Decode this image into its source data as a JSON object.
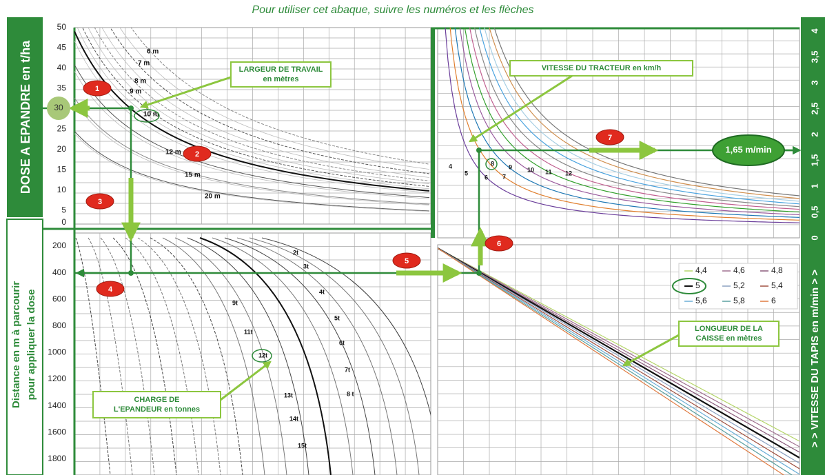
{
  "title": "Pour utiliser cet abaque, suivre les numéros et les flèches",
  "dose_axis": {
    "title": "DOSE A EPANDRE en t/ha",
    "ticks": [
      "50",
      "45",
      "40",
      "35",
      "30",
      "25",
      "20",
      "15",
      "10",
      "5",
      "0"
    ]
  },
  "distance_axis": {
    "title_lines": [
      "Distance en m à parcourir",
      "pour appliquer la dose"
    ],
    "ticks": [
      "200",
      "400",
      "600",
      "800",
      "1000",
      "1200",
      "1400",
      "1600",
      "1800"
    ]
  },
  "speed_axis": {
    "title": "> > VITESSE DU TAPIS en m/min > >",
    "ticks": [
      "0",
      "0,5",
      "1",
      "1,5",
      "2",
      "2,5",
      "3",
      "3,5",
      "4"
    ]
  },
  "width_panel": {
    "label_lines": [
      "LARGEUR DE TRAVAIL",
      "en mètres"
    ],
    "curve_labels": [
      "6 m",
      "7 m",
      "8 m",
      "9 m",
      "10 m",
      "12 m",
      "15 m",
      "20 m"
    ]
  },
  "load_panel": {
    "label_lines": [
      "CHARGE DE",
      "L'EPANDEUR en tonnes"
    ],
    "curve_labels": [
      "2t",
      "3t",
      "4t",
      "5t",
      "6t",
      "7t",
      "8 t",
      "9t",
      "11t",
      "12t",
      "13t",
      "14t",
      "15t"
    ]
  },
  "tractor_panel": {
    "label": "VITESSE DU TRACTEUR en km/h",
    "curve_labels": [
      "4",
      "5",
      "6",
      "7",
      "8",
      "9",
      "10",
      "11",
      "12"
    ]
  },
  "box_panel": {
    "label_lines": [
      "LONGUEUR DE LA",
      "CAISSE en mètres"
    ],
    "legend": [
      "4,4",
      "4,6",
      "4,8",
      "5",
      "5,2",
      "5,4",
      "5,6",
      "5,8",
      "6"
    ]
  },
  "steps": [
    "1",
    "2",
    "3",
    "4",
    "5",
    "6",
    "7"
  ],
  "start_value": "30",
  "result": "1,65 m/min"
}
